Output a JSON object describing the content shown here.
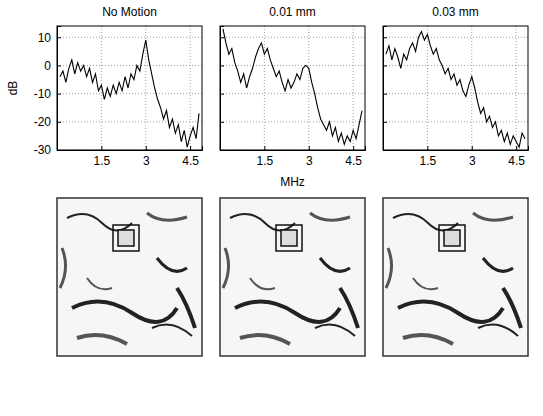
{
  "chart_data": [
    {
      "type": "line",
      "title": "No Motion",
      "ylabel": "dB",
      "color": "#000000",
      "grid": true,
      "xlim": [
        0,
        4.9
      ],
      "ylim": [
        -30,
        14
      ],
      "xticks": [
        1.5,
        3,
        4.5
      ],
      "yticks": [
        -30,
        -20,
        -10,
        0,
        10
      ],
      "x": [
        0.1,
        0.2,
        0.3,
        0.4,
        0.5,
        0.6,
        0.7,
        0.8,
        0.9,
        1.0,
        1.1,
        1.2,
        1.3,
        1.4,
        1.5,
        1.6,
        1.7,
        1.8,
        1.9,
        2.0,
        2.1,
        2.2,
        2.3,
        2.4,
        2.5,
        2.6,
        2.7,
        2.8,
        2.9,
        3.0,
        3.1,
        3.2,
        3.3,
        3.4,
        3.5,
        3.6,
        3.7,
        3.8,
        3.9,
        4.0,
        4.1,
        4.2,
        4.3,
        4.4,
        4.5,
        4.6,
        4.7,
        4.8
      ],
      "values": [
        -4,
        -2,
        -6,
        -1,
        2,
        -3,
        1,
        -2,
        0,
        -4,
        -1,
        -6,
        -3,
        -9,
        -7,
        -12,
        -8,
        -11,
        -7,
        -10,
        -6,
        -9,
        -4,
        -8,
        -3,
        -5,
        0,
        -2,
        4,
        9,
        2,
        -3,
        -8,
        -12,
        -15,
        -19,
        -16,
        -22,
        -19,
        -24,
        -21,
        -27,
        -23,
        -29,
        -25,
        -22,
        -26,
        -17
      ]
    },
    {
      "type": "line",
      "title": "0.01 mm",
      "xlabel": "MHz",
      "color": "#000000",
      "grid": true,
      "tick_labels": "x",
      "xlim": [
        0,
        4.9
      ],
      "ylim": [
        -30,
        14
      ],
      "xticks": [
        1.5,
        3,
        4.5
      ],
      "yticks": [
        -30,
        -20,
        -10,
        0,
        10
      ],
      "x": [
        0.1,
        0.2,
        0.3,
        0.4,
        0.5,
        0.6,
        0.7,
        0.8,
        0.9,
        1.0,
        1.1,
        1.2,
        1.3,
        1.4,
        1.5,
        1.6,
        1.7,
        1.8,
        1.9,
        2.0,
        2.1,
        2.2,
        2.3,
        2.4,
        2.5,
        2.6,
        2.7,
        2.8,
        2.9,
        3.0,
        3.1,
        3.2,
        3.3,
        3.4,
        3.5,
        3.6,
        3.7,
        3.8,
        3.9,
        4.0,
        4.1,
        4.2,
        4.3,
        4.4,
        4.5,
        4.6,
        4.7,
        4.8
      ],
      "values": [
        13,
        8,
        4,
        6,
        1,
        -2,
        -6,
        -3,
        -8,
        -4,
        -1,
        3,
        6,
        8,
        4,
        6,
        2,
        -1,
        -4,
        -2,
        -6,
        -9,
        -5,
        -8,
        -6,
        -3,
        -5,
        -1,
        0,
        -1,
        -6,
        -10,
        -15,
        -19,
        -21,
        -23,
        -20,
        -25,
        -22,
        -27,
        -24,
        -28,
        -25,
        -27,
        -23,
        -26,
        -21,
        -16
      ]
    },
    {
      "type": "line",
      "title": "0.03 mm",
      "color": "#000000",
      "grid": true,
      "tick_labels": "x",
      "xlim": [
        0,
        4.9
      ],
      "ylim": [
        -30,
        14
      ],
      "xticks": [
        1.5,
        3,
        4.5
      ],
      "yticks": [
        -30,
        -20,
        -10,
        0,
        10
      ],
      "x": [
        0.1,
        0.2,
        0.3,
        0.4,
        0.5,
        0.6,
        0.7,
        0.8,
        0.9,
        1.0,
        1.1,
        1.2,
        1.3,
        1.4,
        1.5,
        1.6,
        1.7,
        1.8,
        1.9,
        2.0,
        2.1,
        2.2,
        2.3,
        2.4,
        2.5,
        2.6,
        2.7,
        2.8,
        2.9,
        3.0,
        3.1,
        3.2,
        3.3,
        3.4,
        3.5,
        3.6,
        3.7,
        3.8,
        3.9,
        4.0,
        4.1,
        4.2,
        4.3,
        4.4,
        4.5,
        4.6,
        4.7,
        4.8
      ],
      "values": [
        4,
        7,
        2,
        6,
        3,
        -1,
        4,
        2,
        6,
        8,
        5,
        10,
        12,
        9,
        11,
        7,
        4,
        6,
        2,
        0,
        -3,
        -1,
        -5,
        -3,
        -7,
        -5,
        -9,
        -11,
        -7,
        -4,
        -8,
        -13,
        -17,
        -15,
        -20,
        -18,
        -22,
        -20,
        -25,
        -23,
        -27,
        -24,
        -28,
        -25,
        -27,
        -29,
        -24,
        -26
      ]
    }
  ]
}
